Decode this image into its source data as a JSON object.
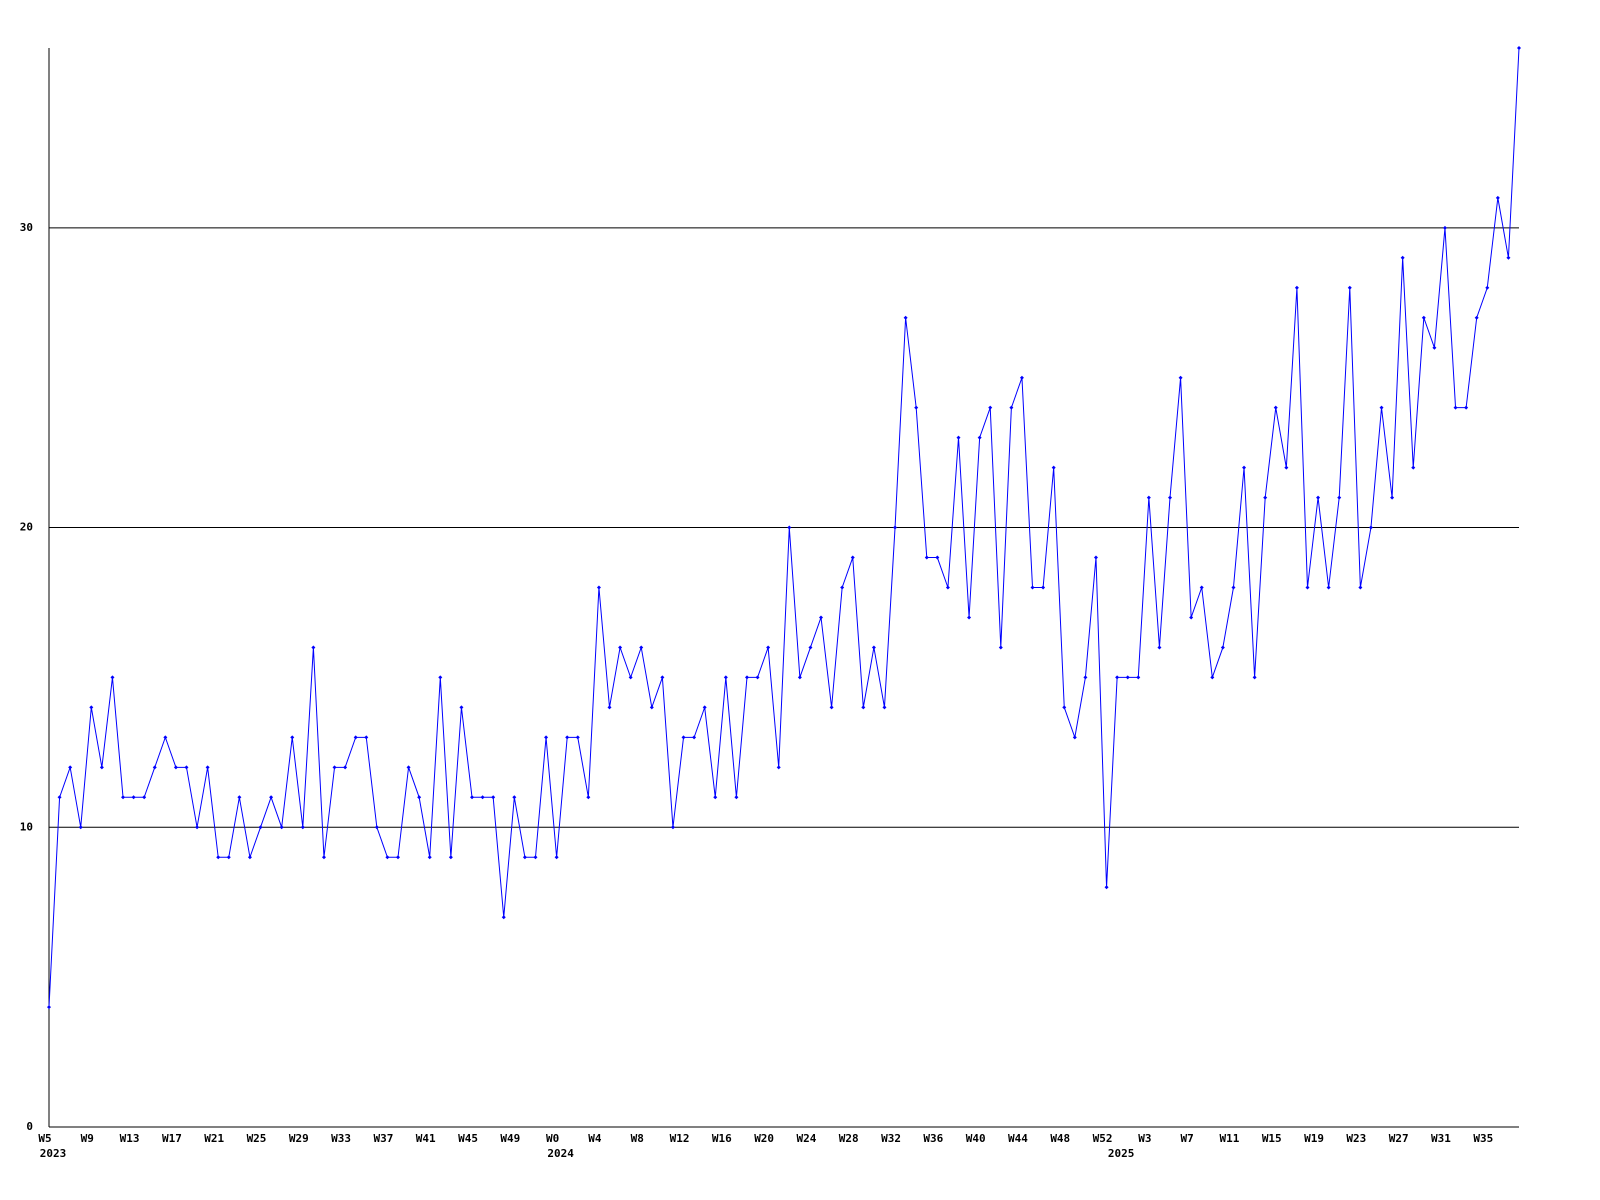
{
  "chart_data": {
    "type": "line",
    "categories": [
      "W5",
      null,
      null,
      null,
      "W9",
      null,
      null,
      null,
      "W13",
      null,
      null,
      null,
      "W17",
      null,
      null,
      null,
      "W21",
      null,
      null,
      null,
      "W25",
      null,
      null,
      null,
      "W29",
      null,
      null,
      null,
      "W33",
      null,
      null,
      null,
      "W37",
      null,
      null,
      null,
      "W41",
      null,
      null,
      null,
      "W45",
      null,
      null,
      null,
      "W49",
      null,
      null,
      null,
      "W0",
      null,
      null,
      null,
      "W4",
      null,
      null,
      null,
      "W8",
      null,
      null,
      null,
      "W12",
      null,
      null,
      null,
      "W16",
      null,
      null,
      null,
      "W20",
      null,
      null,
      null,
      "W24",
      null,
      null,
      null,
      "W28",
      null,
      null,
      null,
      "W32",
      null,
      null,
      null,
      "W36",
      null,
      null,
      null,
      "W40",
      null,
      null,
      null,
      "W44",
      null,
      null,
      null,
      "W48",
      null,
      null,
      null,
      "W52",
      null,
      null,
      null,
      "W3",
      null,
      null,
      null,
      "W7",
      null,
      null,
      null,
      "W11",
      null,
      null,
      null,
      "W15",
      null,
      null,
      null,
      "W19",
      null,
      null,
      null,
      "W23",
      null,
      null,
      null,
      "W27",
      null,
      null,
      null,
      "W31",
      null,
      null,
      null,
      "W35",
      null,
      null,
      null
    ],
    "years": [
      "2023",
      null,
      null,
      null,
      null,
      null,
      null,
      null,
      null,
      null,
      null,
      null,
      null,
      null,
      null,
      null,
      null,
      null,
      null,
      null,
      null,
      null,
      null,
      null,
      null,
      null,
      null,
      null,
      null,
      null,
      null,
      null,
      null,
      null,
      null,
      null,
      null,
      null,
      null,
      null,
      null,
      null,
      null,
      null,
      null,
      null,
      null,
      null,
      "2024",
      null,
      null,
      null,
      null,
      null,
      null,
      null,
      null,
      null,
      null,
      null,
      null,
      null,
      null,
      null,
      null,
      null,
      null,
      null,
      null,
      null,
      null,
      null,
      null,
      null,
      null,
      null,
      null,
      null,
      null,
      null,
      null,
      null,
      null,
      null,
      null,
      null,
      null,
      null,
      null,
      null,
      null,
      null,
      null,
      null,
      null,
      null,
      null,
      null,
      null,
      null,
      null,
      "2025",
      null,
      null,
      null,
      null,
      null,
      null,
      null,
      null,
      null,
      null,
      null,
      null,
      null,
      null,
      null,
      null,
      null,
      null,
      null,
      null,
      null,
      null,
      null,
      null,
      null,
      null,
      null,
      null,
      null,
      null,
      null,
      null,
      null,
      null,
      null,
      null,
      null,
      null
    ],
    "values": [
      4,
      11,
      12,
      10,
      14,
      12,
      15,
      11,
      11,
      11,
      12,
      13,
      12,
      12,
      10,
      12,
      9,
      9,
      11,
      9,
      10,
      11,
      10,
      13,
      10,
      16,
      9,
      12,
      12,
      13,
      13,
      10,
      9,
      9,
      12,
      11,
      9,
      15,
      9,
      14,
      11,
      11,
      11,
      7,
      11,
      9,
      9,
      13,
      9,
      13,
      13,
      11,
      18,
      14,
      16,
      15,
      16,
      14,
      15,
      10,
      13,
      13,
      14,
      11,
      15,
      11,
      15,
      15,
      16,
      12,
      20,
      15,
      16,
      17,
      14,
      18,
      19,
      14,
      16,
      14,
      20,
      27,
      24,
      19,
      19,
      18,
      23,
      17,
      23,
      24,
      16,
      24,
      25,
      18,
      18,
      22,
      14,
      13,
      15,
      19,
      8,
      15,
      15,
      15,
      21,
      16,
      21,
      25,
      17,
      18,
      15,
      16,
      18,
      22,
      15,
      21,
      24,
      22,
      28,
      18,
      21,
      18,
      21,
      28,
      18,
      20,
      24,
      21,
      29,
      22,
      27,
      26,
      30,
      24,
      24,
      27,
      28,
      31,
      29,
      36
    ],
    "color": "#0000ff",
    "ylim": [
      0,
      36
    ],
    "yticks": [
      0,
      10,
      20,
      30
    ],
    "grid": true
  }
}
